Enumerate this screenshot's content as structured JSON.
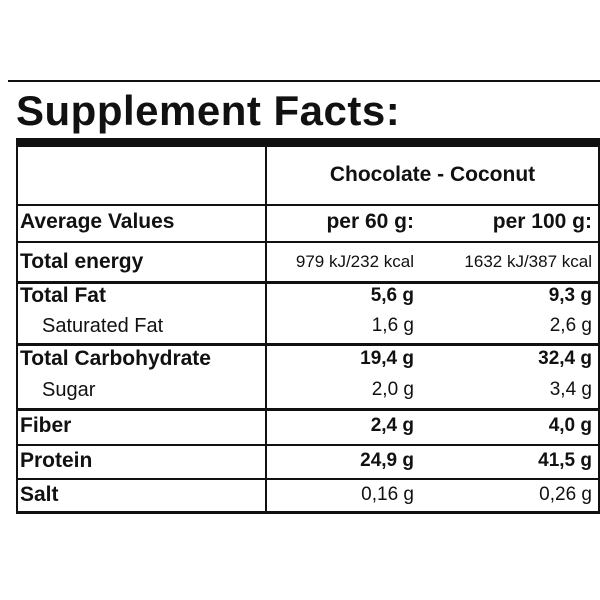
{
  "title": "Supplement Facts:",
  "flavor": "Chocolate - Coconut",
  "columns": {
    "label": "Average Values",
    "per60": "per 60 g:",
    "per100": "per 100 g:"
  },
  "rows": [
    {
      "label": "Total energy",
      "per60": "979 kJ/232 kcal",
      "per100": "1632 kJ/387 kcal"
    },
    {
      "label": "Total Fat",
      "per60": "5,6 g",
      "per100": "9,3 g"
    },
    {
      "label": "Saturated Fat",
      "per60": "1,6 g",
      "per100": "2,6 g"
    },
    {
      "label": "Total Carbohydrate",
      "per60": "19,4 g",
      "per100": "32,4 g"
    },
    {
      "label": "Sugar",
      "per60": "2,0 g",
      "per100": "3,4 g"
    },
    {
      "label": "Fiber",
      "per60": "2,4 g",
      "per100": "4,0 g"
    },
    {
      "label": "Protein",
      "per60": "24,9 g",
      "per100": "41,5 g"
    },
    {
      "label": "Salt",
      "per60": "0,16 g",
      "per100": "0,26 g"
    }
  ]
}
